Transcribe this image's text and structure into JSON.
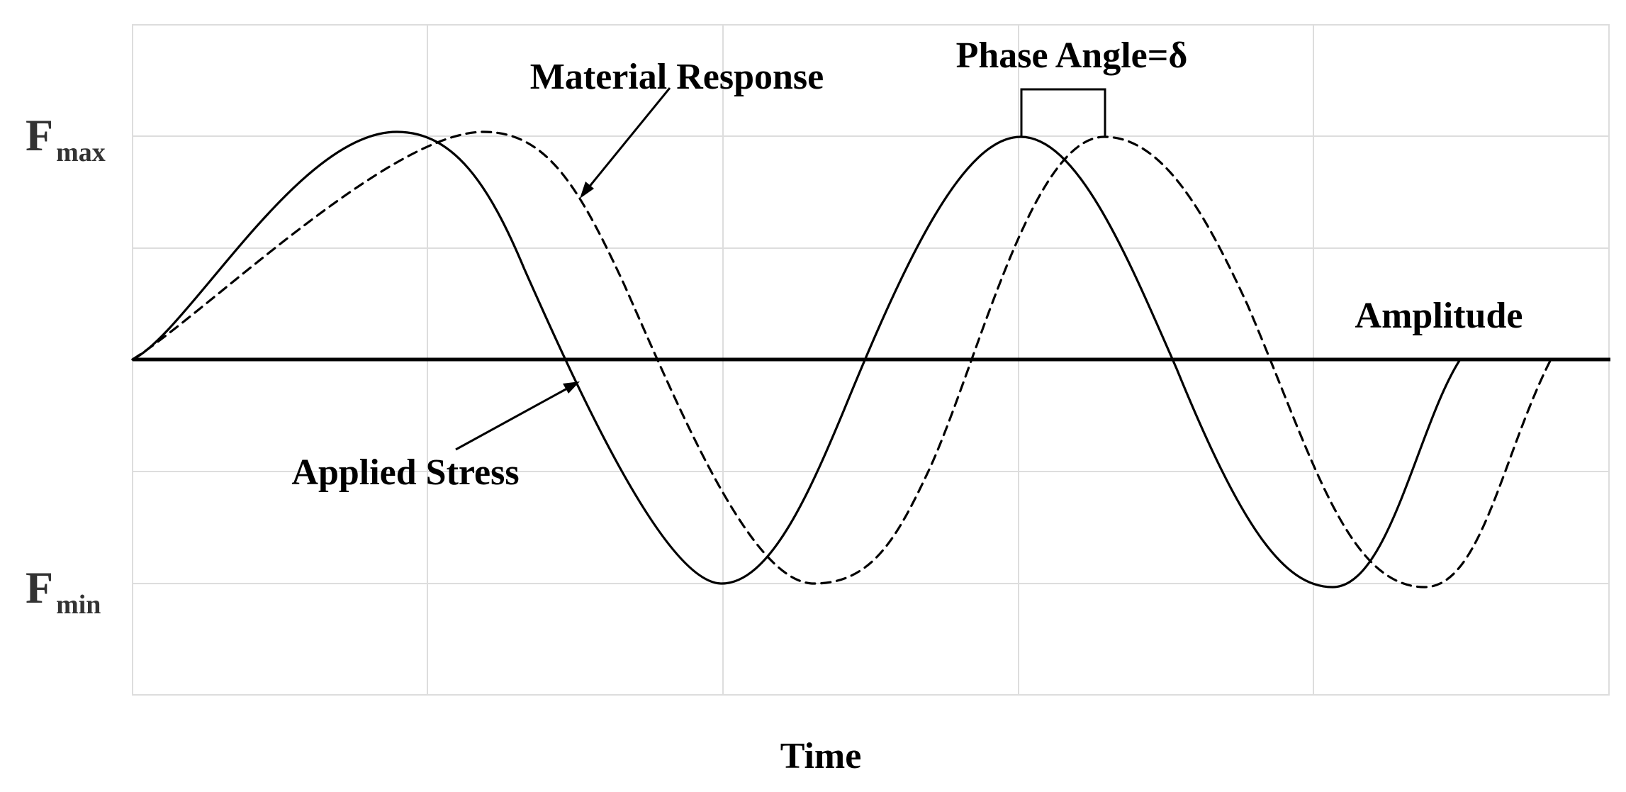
{
  "labels": {
    "f_max_main": "F",
    "f_max_sub": "max",
    "f_min_main": "F",
    "f_min_sub": "min",
    "material_response": "Material Response",
    "applied_stress": "Applied Stress",
    "phase_angle": "Phase Angle=δ",
    "amplitude": "Amplitude",
    "time": "Time"
  },
  "colors": {
    "curve": "#000000",
    "grid": "#dddddd",
    "level_label": "#333333"
  },
  "curves": [
    {
      "role": "applied-stress",
      "style": "solid"
    },
    {
      "role": "material-response",
      "style": "dashed"
    }
  ]
}
